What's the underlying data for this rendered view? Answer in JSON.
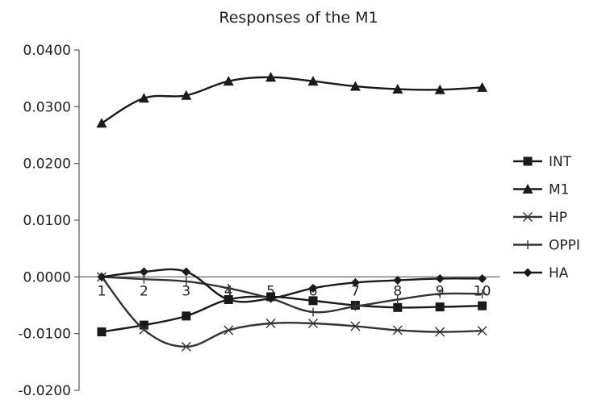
{
  "chart_data": {
    "type": "line",
    "title": "Responses of the M1",
    "xlabel": "",
    "ylabel": "",
    "categories": [
      "1",
      "2",
      "3",
      "4",
      "5",
      "6",
      "7",
      "8",
      "9",
      "10"
    ],
    "ylim": [
      -0.02,
      0.04
    ],
    "yticks": [
      "0.0400",
      "0.0300",
      "0.0200",
      "0.0100",
      "0.0000",
      "-0.0100",
      "-0.0200"
    ],
    "ytick_values": [
      0.04,
      0.03,
      0.02,
      0.01,
      0.0,
      -0.01,
      -0.02
    ],
    "grid": false,
    "legend_position": "right",
    "series": [
      {
        "name": "INT",
        "marker": "square",
        "color": "#1a1a1a",
        "values": [
          -0.0097,
          -0.0085,
          -0.0069,
          -0.004,
          -0.0035,
          -0.0042,
          -0.005,
          -0.0054,
          -0.0053,
          -0.0051
        ]
      },
      {
        "name": "M1",
        "marker": "triangle",
        "color": "#1a1a1a",
        "values": [
          0.0271,
          0.0315,
          0.032,
          0.0345,
          0.0352,
          0.0345,
          0.0336,
          0.0331,
          0.033,
          0.0334
        ]
      },
      {
        "name": "HP",
        "marker": "x",
        "color": "#333333",
        "values": [
          0.0,
          -0.0093,
          -0.0123,
          -0.0094,
          -0.0082,
          -0.0082,
          -0.0087,
          -0.0094,
          -0.0097,
          -0.0095
        ]
      },
      {
        "name": "OPPI",
        "marker": "plus",
        "color": "#333333",
        "values": [
          0.0,
          -0.0004,
          -0.0008,
          -0.002,
          -0.0038,
          -0.0062,
          -0.0052,
          -0.004,
          -0.003,
          -0.003
        ]
      },
      {
        "name": "HA",
        "marker": "diamond",
        "color": "#1a1a1a",
        "values": [
          0.0,
          0.0009,
          0.0009,
          -0.004,
          -0.0038,
          -0.002,
          -0.001,
          -0.0006,
          -0.0003,
          -0.0003
        ]
      }
    ]
  }
}
